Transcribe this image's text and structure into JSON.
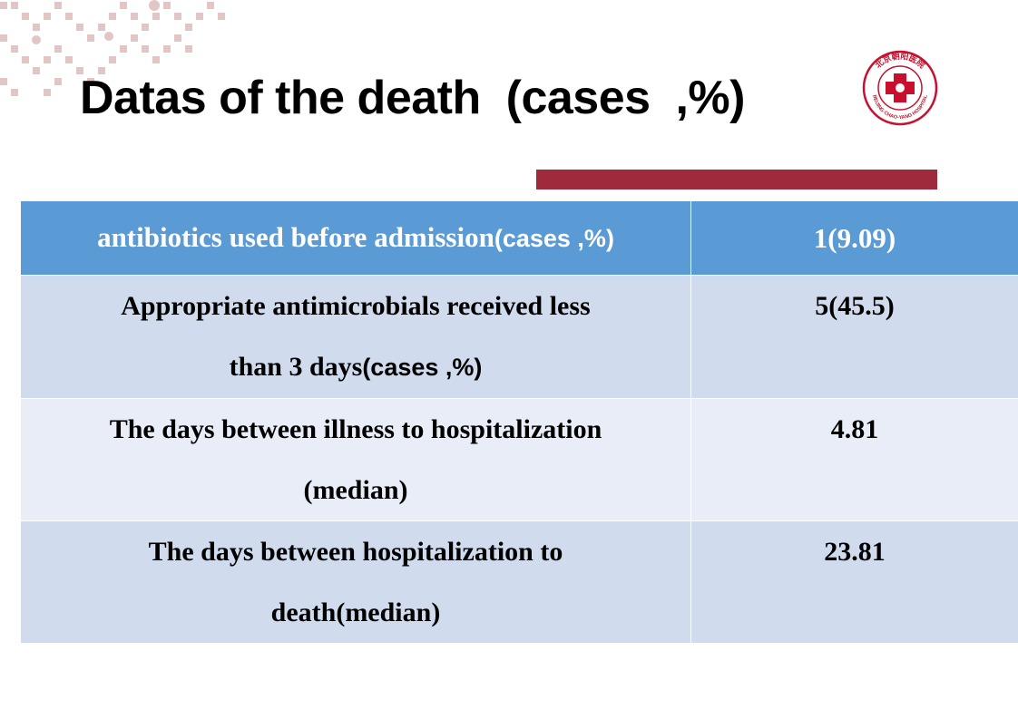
{
  "slide": {
    "title": "Datas of the death  (cases  ,%)"
  },
  "logo": {
    "icon": "hospital-logo-icon",
    "arc_text": "北京朝阳医院",
    "sub_text": "BEIJING CHAO-YANG HOSPITAL"
  },
  "table": {
    "header": {
      "label_main": "antibiotics  used  before   admission",
      "label_suffix": "(cases  ,%)",
      "value": "1(9.09)"
    },
    "rows": [
      {
        "label_line1": "Appropriate antimicrobials received less",
        "label_line2_main": "than 3  days",
        "label_line2_suffix": "(cases  ,%)",
        "value": "5(45.5)"
      },
      {
        "label_line1": "The days between  illness to hospitalization",
        "label_line2": "(median)",
        "value": "4.81"
      },
      {
        "label_line1": "The days between hospitalization to",
        "label_line2": "death(median)",
        "value": "23.81"
      }
    ]
  },
  "colors": {
    "header_bg": "#5b9bd5",
    "row_dark": "#d0dbee",
    "row_light": "#e8edf7",
    "accent_bar": "#9e2a3c",
    "decoration": "#d9b3b3"
  }
}
